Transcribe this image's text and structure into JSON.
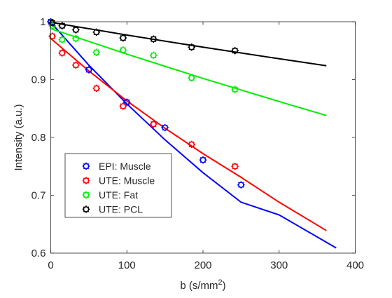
{
  "chart_data": {
    "type": "scatter",
    "title": "",
    "xlabel": "b (s/mm",
    "xlabel_sup": "2",
    "xlabel_close": ")",
    "ylabel": "Intensity (a.u.)",
    "xlim": [
      0,
      400
    ],
    "ylim": [
      0.6,
      1.0
    ],
    "xticks": [
      0,
      100,
      200,
      300,
      400
    ],
    "xtick_labels": [
      "0",
      "100",
      "200",
      "300",
      "400"
    ],
    "yticks": [
      0.6,
      0.7,
      0.8,
      0.9,
      1.0
    ],
    "ytick_labels": [
      "0.6",
      "0.7",
      "0.8",
      "0.9",
      "1"
    ],
    "grid": false,
    "legend_position": "bottom-left",
    "series": [
      {
        "name": "EPI: Muscle",
        "color": "#0000ff",
        "points": [
          [
            0,
            1.0
          ],
          [
            50,
            0.917
          ],
          [
            100,
            0.861
          ],
          [
            150,
            0.817
          ],
          [
            200,
            0.761
          ],
          [
            250,
            0.718
          ]
        ],
        "fit": [
          [
            0,
            0.999
          ],
          [
            50,
            0.925
          ],
          [
            100,
            0.858
          ],
          [
            150,
            0.796
          ],
          [
            200,
            0.739
          ],
          [
            250,
            0.688
          ],
          [
            300,
            0.666
          ],
          [
            375,
            0.609
          ]
        ]
      },
      {
        "name": "UTE: Muscle",
        "color": "#ff0000",
        "points": [
          [
            2,
            0.975
          ],
          [
            15,
            0.946
          ],
          [
            33,
            0.925
          ],
          [
            60,
            0.885
          ],
          [
            95,
            0.854
          ],
          [
            135,
            0.823
          ],
          [
            185,
            0.788
          ],
          [
            242,
            0.75
          ]
        ],
        "fit": [
          [
            0,
            0.971
          ],
          [
            50,
            0.915
          ],
          [
            100,
            0.863
          ],
          [
            150,
            0.816
          ],
          [
            200,
            0.772
          ],
          [
            250,
            0.731
          ],
          [
            300,
            0.688
          ],
          [
            362,
            0.639
          ]
        ]
      },
      {
        "name": "UTE: Fat",
        "color": "#00ee00",
        "points": [
          [
            2,
            0.993
          ],
          [
            15,
            0.969
          ],
          [
            33,
            0.971
          ],
          [
            60,
            0.947
          ],
          [
            95,
            0.951
          ],
          [
            135,
            0.942
          ],
          [
            185,
            0.903
          ],
          [
            242,
            0.883
          ]
        ],
        "fit": [
          [
            0,
            0.988
          ],
          [
            100,
            0.944
          ],
          [
            200,
            0.902
          ],
          [
            300,
            0.862
          ],
          [
            362,
            0.838
          ]
        ]
      },
      {
        "name": "UTE: PCL",
        "color": "#000000",
        "points": [
          [
            2,
            0.998
          ],
          [
            15,
            0.993
          ],
          [
            33,
            0.986
          ],
          [
            60,
            0.982
          ],
          [
            95,
            0.972
          ],
          [
            135,
            0.97
          ],
          [
            185,
            0.956
          ],
          [
            242,
            0.95
          ]
        ],
        "fit": [
          [
            0,
            0.999
          ],
          [
            100,
            0.977
          ],
          [
            200,
            0.956
          ],
          [
            300,
            0.936
          ],
          [
            362,
            0.924
          ]
        ]
      }
    ]
  }
}
